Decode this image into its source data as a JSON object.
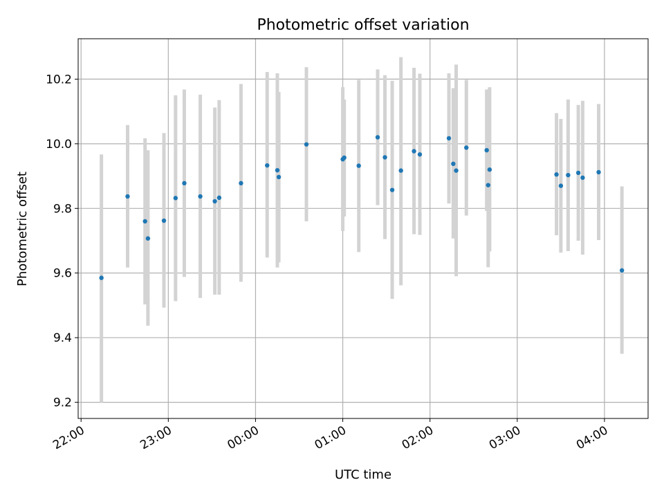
{
  "chart_data": {
    "type": "scatter",
    "title": "Photometric offset variation",
    "xlabel": "UTC time",
    "ylabel": "Photometric offset",
    "x_axis_kind": "time",
    "x_range": [
      "21:58",
      "04:30"
    ],
    "ylim": [
      9.15,
      10.325
    ],
    "x_ticks": [
      "22:00",
      "23:00",
      "00:00",
      "01:00",
      "02:00",
      "03:00",
      "04:00"
    ],
    "y_ticks": [
      "9.2",
      "9.4",
      "9.6",
      "9.8",
      "10.0",
      "10.2"
    ],
    "grid": true,
    "point_color": "#1f77b4",
    "errorbar_color": "#d3d3d3",
    "points": [
      {
        "time": "22:14",
        "value": 9.585,
        "low": 9.2,
        "high": 9.967
      },
      {
        "time": "22:32",
        "value": 9.837,
        "low": 9.617,
        "high": 10.058
      },
      {
        "time": "22:44",
        "value": 9.76,
        "low": 9.503,
        "high": 10.017
      },
      {
        "time": "22:46",
        "value": 9.707,
        "low": 9.437,
        "high": 9.98
      },
      {
        "time": "22:57",
        "value": 9.762,
        "low": 9.493,
        "high": 10.033
      },
      {
        "time": "23:05",
        "value": 9.832,
        "low": 9.513,
        "high": 10.15
      },
      {
        "time": "23:11",
        "value": 9.878,
        "low": 9.588,
        "high": 10.168
      },
      {
        "time": "23:22",
        "value": 9.837,
        "low": 9.523,
        "high": 10.152
      },
      {
        "time": "23:32",
        "value": 9.822,
        "low": 9.533,
        "high": 10.112
      },
      {
        "time": "23:35",
        "value": 9.833,
        "low": 9.533,
        "high": 10.135
      },
      {
        "time": "23:50",
        "value": 9.878,
        "low": 9.573,
        "high": 10.185
      },
      {
        "time": "00:08",
        "value": 9.933,
        "low": 9.648,
        "high": 10.222
      },
      {
        "time": "00:15",
        "value": 9.918,
        "low": 9.617,
        "high": 10.218
      },
      {
        "time": "00:16",
        "value": 9.897,
        "low": 9.633,
        "high": 10.16
      },
      {
        "time": "00:35",
        "value": 9.998,
        "low": 9.76,
        "high": 10.237
      },
      {
        "time": "01:00",
        "value": 9.952,
        "low": 9.73,
        "high": 10.175
      },
      {
        "time": "01:01",
        "value": 9.957,
        "low": 9.775,
        "high": 10.137
      },
      {
        "time": "01:11",
        "value": 9.932,
        "low": 9.665,
        "high": 10.198
      },
      {
        "time": "01:24",
        "value": 10.02,
        "low": 9.81,
        "high": 10.23
      },
      {
        "time": "01:29",
        "value": 9.958,
        "low": 9.705,
        "high": 10.212
      },
      {
        "time": "01:34",
        "value": 9.857,
        "low": 9.52,
        "high": 10.195
      },
      {
        "time": "01:40",
        "value": 9.917,
        "low": 9.562,
        "high": 10.268
      },
      {
        "time": "01:49",
        "value": 9.977,
        "low": 9.72,
        "high": 10.235
      },
      {
        "time": "01:53",
        "value": 9.967,
        "low": 9.718,
        "high": 10.217
      },
      {
        "time": "02:13",
        "value": 10.017,
        "low": 9.815,
        "high": 10.218
      },
      {
        "time": "02:16",
        "value": 9.938,
        "low": 9.707,
        "high": 10.172
      },
      {
        "time": "02:18",
        "value": 9.917,
        "low": 9.59,
        "high": 10.245
      },
      {
        "time": "02:25",
        "value": 9.988,
        "low": 9.778,
        "high": 10.198
      },
      {
        "time": "02:39",
        "value": 9.98,
        "low": 9.792,
        "high": 10.168
      },
      {
        "time": "02:40",
        "value": 9.872,
        "low": 9.618,
        "high": 10.127
      },
      {
        "time": "02:41",
        "value": 9.92,
        "low": 9.667,
        "high": 10.175
      },
      {
        "time": "03:27",
        "value": 9.905,
        "low": 9.717,
        "high": 10.095
      },
      {
        "time": "03:30",
        "value": 9.87,
        "low": 9.663,
        "high": 10.077
      },
      {
        "time": "03:35",
        "value": 9.903,
        "low": 9.668,
        "high": 10.137
      },
      {
        "time": "03:42",
        "value": 9.91,
        "low": 9.7,
        "high": 10.12
      },
      {
        "time": "03:45",
        "value": 9.895,
        "low": 9.657,
        "high": 10.133
      },
      {
        "time": "03:56",
        "value": 9.912,
        "low": 9.702,
        "high": 10.123
      },
      {
        "time": "04:12",
        "value": 9.608,
        "low": 9.35,
        "high": 9.868
      }
    ]
  }
}
